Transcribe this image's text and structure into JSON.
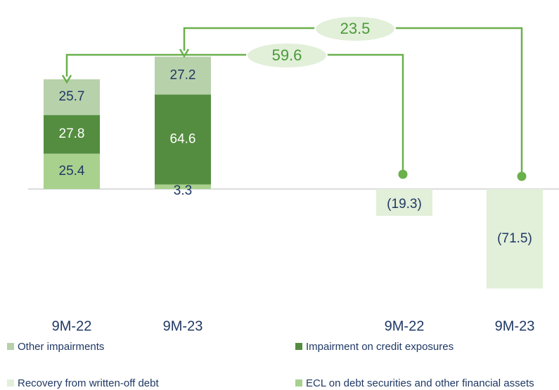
{
  "chart_data": {
    "type": "bar",
    "stacked": true,
    "categories": [
      "9M-22",
      "9M-23",
      "9M-22",
      "9M-23"
    ],
    "series": [
      {
        "name": "Other impairments",
        "color": "#b7d1ab",
        "values": [
          25.7,
          27.2,
          null,
          null
        ]
      },
      {
        "name": "Impairment on credit exposures",
        "color": "#548d3f",
        "values": [
          27.8,
          64.6,
          null,
          null
        ]
      },
      {
        "name": "Recovery from written-off debt",
        "color": "#e2efd9",
        "values": [
          null,
          null,
          -19.3,
          -71.5
        ],
        "value_labels": [
          null,
          null,
          "(19.3)",
          "(71.5)"
        ]
      },
      {
        "name": "ECL on debt securities and other financial assets",
        "color": "#a9d18e",
        "values": [
          25.4,
          3.3,
          null,
          null
        ]
      }
    ],
    "annotations": [
      "23.5",
      "59.6"
    ]
  }
}
